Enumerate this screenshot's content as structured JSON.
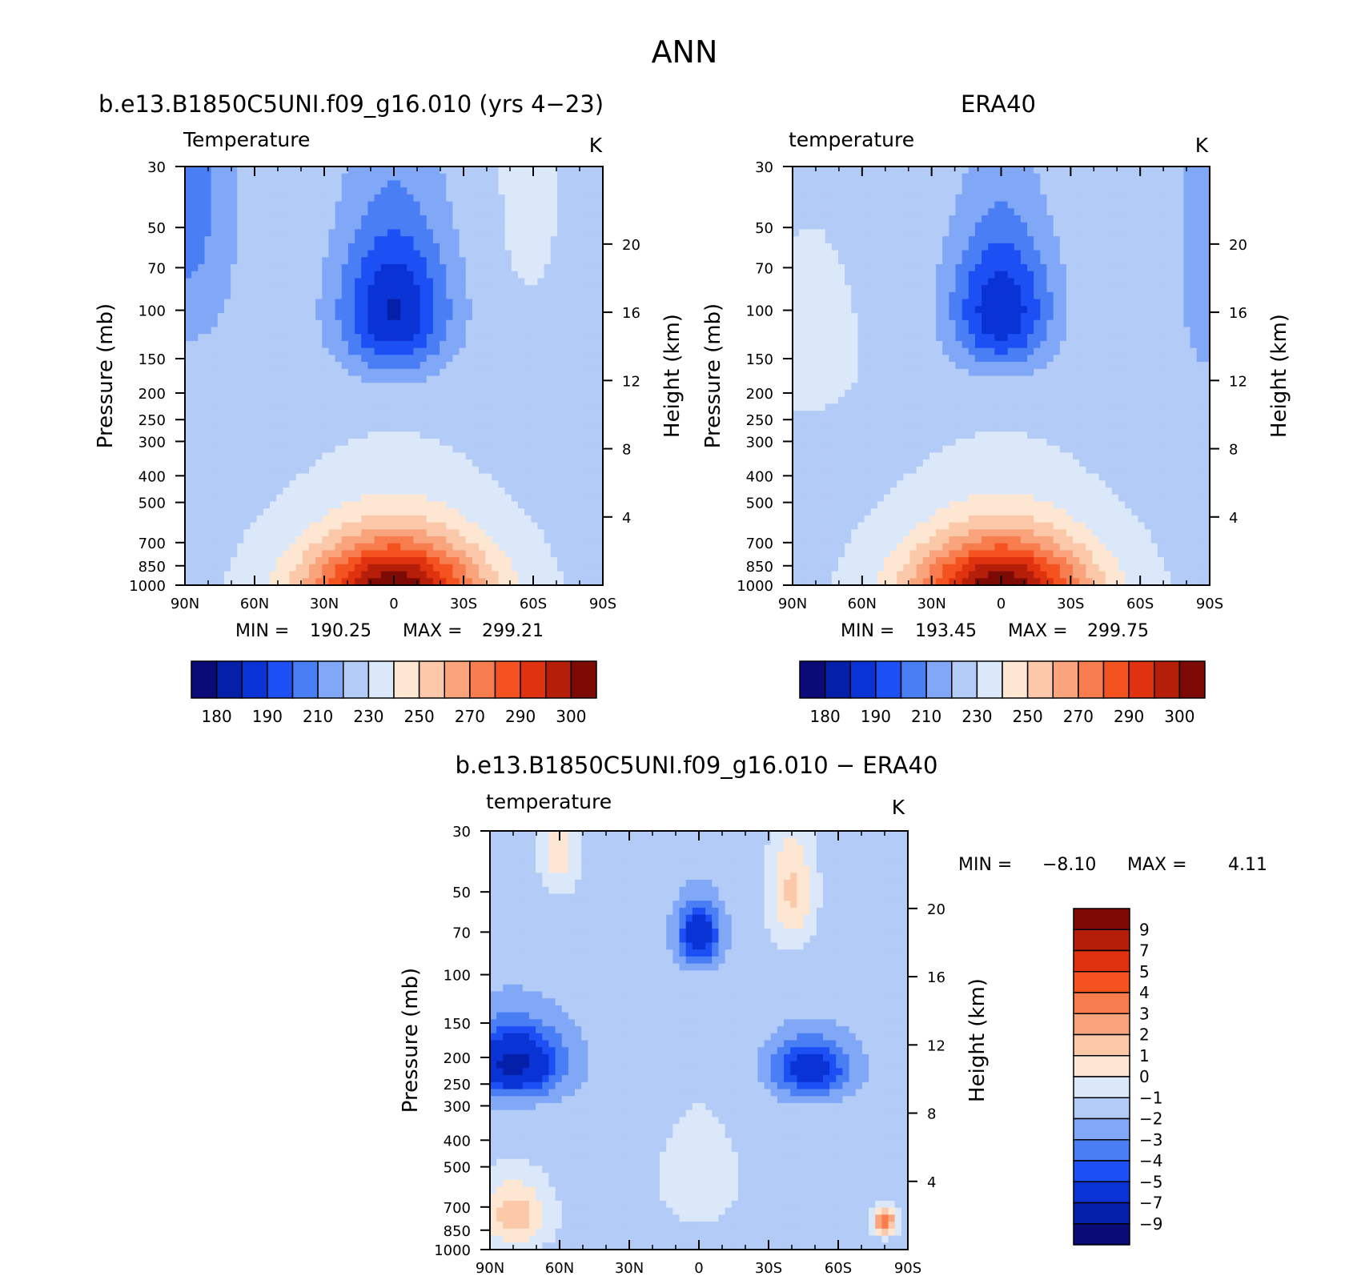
{
  "title": "ANN",
  "chart_data": [
    {
      "type": "heatmap",
      "title": "b.e13.B1850C5UNI.f09_g16.010 (yrs 4−23)",
      "variable": "Temperature",
      "units": "K",
      "ylabel": "Pressure (mb)",
      "ylabel_right": "Height (km)",
      "x_ticks": [
        "90N",
        "60N",
        "30N",
        "0",
        "30S",
        "60S",
        "90S"
      ],
      "y_ticks": [
        30,
        50,
        70,
        100,
        150,
        200,
        250,
        300,
        400,
        500,
        700,
        850,
        1000
      ],
      "y_ticks_right": [
        20,
        16,
        12,
        8,
        4
      ],
      "min": "190.25",
      "max": "299.21",
      "min_label": "MIN =",
      "max_label": "MAX =",
      "colorbar_levels": [
        180,
        190,
        210,
        230,
        250,
        270,
        290,
        300
      ],
      "colorbar_colors": [
        "#0b0b78",
        "#0420a8",
        "#0a33d6",
        "#1c50f5",
        "#4a7ef5",
        "#80a8f7",
        "#b3cbf7",
        "#dbe8fa",
        "#fde6d2",
        "#fbc9a9",
        "#f9a47c",
        "#f77d4e",
        "#f4521f",
        "#e0320f",
        "#b51f0a",
        "#7d0a05"
      ],
      "fields": {
        "base": 230,
        "lobes": [
          {
            "lat": 0,
            "p": 1000,
            "slat": 38,
            "sp": 380,
            "amp": 72
          },
          {
            "lat": 0,
            "p": 100,
            "slat": 24,
            "sp": 65,
            "amp": -40
          },
          {
            "lat": 88,
            "p": 30,
            "slat": 20,
            "sp": 95,
            "amp": -18
          },
          {
            "lat": -58,
            "p": 30,
            "slat": 10,
            "sp": 40,
            "amp": 9
          }
        ]
      }
    },
    {
      "type": "heatmap",
      "title": "ERA40",
      "variable": "temperature",
      "units": "K",
      "ylabel": "Pressure (mb)",
      "ylabel_right": "Height (km)",
      "x_ticks": [
        "90N",
        "60N",
        "30N",
        "0",
        "30S",
        "60S",
        "90S"
      ],
      "y_ticks": [
        30,
        50,
        70,
        100,
        150,
        200,
        250,
        300,
        400,
        500,
        700,
        850,
        1000
      ],
      "y_ticks_right": [
        20,
        16,
        12,
        8,
        4
      ],
      "min": "193.45",
      "max": "299.75",
      "min_label": "MIN =",
      "max_label": "MAX =",
      "colorbar_levels": [
        180,
        190,
        210,
        230,
        250,
        270,
        290,
        300
      ],
      "colorbar_colors": [
        "#0b0b78",
        "#0420a8",
        "#0a33d6",
        "#1c50f5",
        "#4a7ef5",
        "#80a8f7",
        "#b3cbf7",
        "#dbe8fa",
        "#fde6d2",
        "#fbc9a9",
        "#f9a47c",
        "#f77d4e",
        "#f4521f",
        "#e0320f",
        "#b51f0a",
        "#7d0a05"
      ],
      "fields": {
        "base": 230,
        "lobes": [
          {
            "lat": 0,
            "p": 1000,
            "slat": 38,
            "sp": 380,
            "amp": 72
          },
          {
            "lat": 0,
            "p": 100,
            "slat": 22,
            "sp": 60,
            "amp": -38
          },
          {
            "lat": 82,
            "p": 140,
            "slat": 16,
            "sp": 70,
            "amp": 10
          },
          {
            "lat": -90,
            "p": 40,
            "slat": 14,
            "sp": 130,
            "amp": -14
          }
        ]
      }
    },
    {
      "type": "heatmap",
      "title": "b.e13.B1850C5UNI.f09_g16.010 − ERA40",
      "variable": "temperature",
      "units": "K",
      "ylabel": "Pressure (mb)",
      "ylabel_right": "Height (km)",
      "x_ticks": [
        "90N",
        "60N",
        "30N",
        "0",
        "30S",
        "60S",
        "90S"
      ],
      "y_ticks": [
        30,
        50,
        70,
        100,
        150,
        200,
        250,
        300,
        400,
        500,
        700,
        850,
        1000
      ],
      "y_ticks_right": [
        20,
        16,
        12,
        8,
        4
      ],
      "min": "−8.10",
      "max": "4.11",
      "min_label": "MIN =",
      "max_label": "MAX =",
      "colorbar_levels": [
        "9",
        "7",
        "5",
        "4",
        "3",
        "2",
        "1",
        "0",
        "−1",
        "−2",
        "−3",
        "−4",
        "−5",
        "−7",
        "−9"
      ],
      "colorbar_colors": [
        "#7d0a05",
        "#b51f0a",
        "#e0320f",
        "#f4521f",
        "#f77d4e",
        "#f9a47c",
        "#fbc9a9",
        "#fde6d2",
        "#dbe8fa",
        "#b3cbf7",
        "#80a8f7",
        "#4a7ef5",
        "#1c50f5",
        "#0a33d6",
        "#0420a8",
        "#0b0b78"
      ],
      "fields": {
        "base": -1.6,
        "lobes": [
          {
            "lat": 80,
            "p": 210,
            "slat": 20,
            "sp": 60,
            "amp": -6
          },
          {
            "lat": -48,
            "p": 220,
            "slat": 16,
            "sp": 50,
            "amp": -4.5
          },
          {
            "lat": 0,
            "p": 72,
            "slat": 9,
            "sp": 18,
            "amp": -5
          },
          {
            "lat": 0,
            "p": 550,
            "slat": 22,
            "sp": 320,
            "amp": 1.1
          },
          {
            "lat": 80,
            "p": 750,
            "slat": 16,
            "sp": 220,
            "amp": 3.2
          },
          {
            "lat": -40,
            "p": 50,
            "slat": 10,
            "sp": 25,
            "amp": 2.8
          },
          {
            "lat": 60,
            "p": 35,
            "slat": 9,
            "sp": 15,
            "amp": 2.2
          },
          {
            "lat": -80,
            "p": 790,
            "slat": 5,
            "sp": 90,
            "amp": 5.5
          }
        ]
      }
    }
  ]
}
